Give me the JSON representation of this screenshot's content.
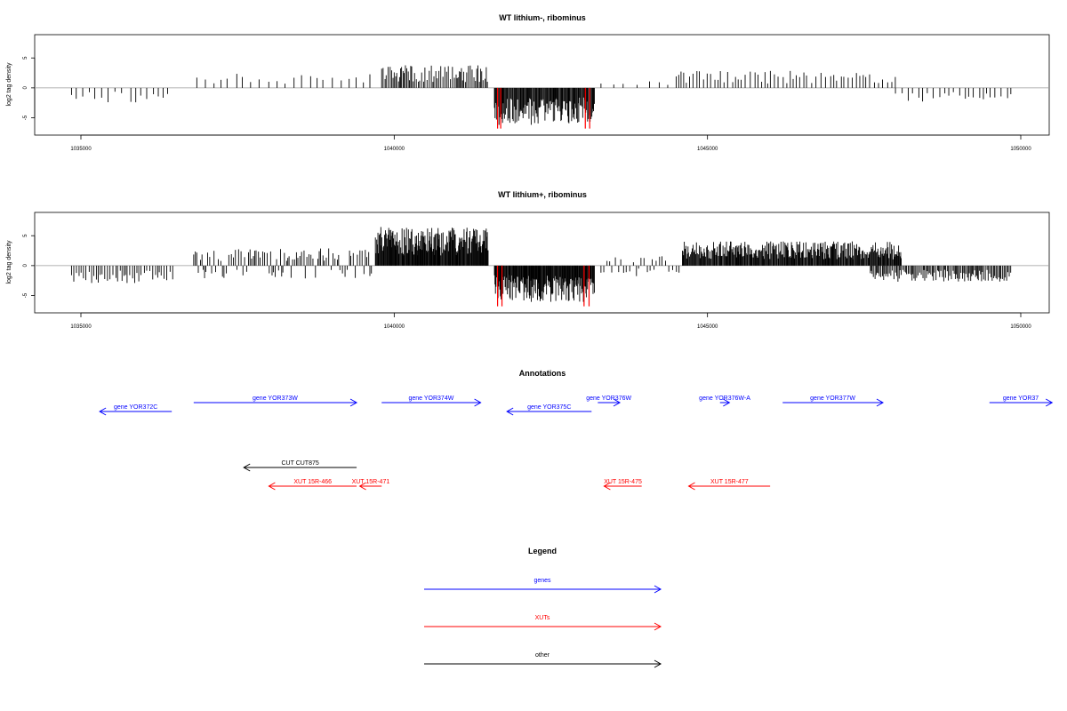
{
  "chart_data": [
    {
      "type": "bar",
      "title": "WT lithium-, ribominus",
      "ylabel": "log2 tag density",
      "xlim": [
        1035000,
        1050000
      ],
      "ylim": [
        -7,
        8
      ],
      "x_ticks": [
        1035000,
        1040000,
        1045000,
        1050000
      ],
      "y_ticks": [
        -5,
        0,
        5
      ],
      "baseline": 0,
      "segments": [
        {
          "x0": 1034850,
          "x1": 1036400,
          "y": -1.8,
          "step": 110
        },
        {
          "x0": 1036850,
          "x1": 1039750,
          "y": 1.9,
          "step": 130
        },
        {
          "x0": 1039800,
          "x1": 1041500,
          "y": 2.8,
          "step": 25
        },
        {
          "x0": 1041600,
          "x1": 1043200,
          "y": -4.6,
          "step": 12
        },
        {
          "x0": 1043300,
          "x1": 1044450,
          "y": 0.8,
          "step": 160
        },
        {
          "x0": 1044500,
          "x1": 1048000,
          "y": 2.1,
          "step": 60
        },
        {
          "x0": 1048000,
          "x1": 1049850,
          "y": -1.7,
          "step": 80
        }
      ],
      "highlight_x": [
        1041650,
        1041700,
        1043050,
        1043120
      ],
      "highlight_color": "#ff0000"
    },
    {
      "type": "bar",
      "title": "WT lithium+, ribominus",
      "ylabel": "log2 tag density",
      "xlim": [
        1035000,
        1050000
      ],
      "ylim": [
        -7,
        8
      ],
      "x_ticks": [
        1035000,
        1040000,
        1045000,
        1050000
      ],
      "y_ticks": [
        -5,
        0,
        5
      ],
      "baseline": 0,
      "segments": [
        {
          "x0": 1034850,
          "x1": 1036500,
          "y": -2.2,
          "step": 40
        },
        {
          "x0": 1036800,
          "x1": 1039650,
          "y": 2.2,
          "step": 30,
          "alt": -1.6
        },
        {
          "x0": 1039700,
          "x1": 1041500,
          "y": 4.8,
          "step": 10
        },
        {
          "x0": 1041600,
          "x1": 1043200,
          "y": -4.5,
          "step": 10
        },
        {
          "x0": 1043300,
          "x1": 1044550,
          "y": -1.4,
          "step": 45,
          "alt": 1.2
        },
        {
          "x0": 1044600,
          "x1": 1048100,
          "y": 3.0,
          "step": 12
        },
        {
          "x0": 1047600,
          "x1": 1049850,
          "y": -2.0,
          "step": 20
        }
      ],
      "highlight_x": [
        1041650,
        1041720,
        1043030,
        1043110
      ],
      "highlight_color": "#ff0000"
    }
  ],
  "annotations": {
    "title": "Annotations",
    "genes": [
      {
        "label": "gene YOR372C",
        "x0": 1035300,
        "x1": 1036450,
        "dir": "left",
        "row": 2
      },
      {
        "label": "gene YOR373W",
        "x0": 1036800,
        "x1": 1039400,
        "dir": "right",
        "row": 1
      },
      {
        "label": "gene YOR374W",
        "x0": 1039800,
        "x1": 1041380,
        "dir": "right",
        "row": 1
      },
      {
        "label": "gene YOR375C",
        "x0": 1041800,
        "x1": 1043150,
        "dir": "left",
        "row": 2
      },
      {
        "label": "gene YOR376W",
        "x0": 1043250,
        "x1": 1043600,
        "dir": "right",
        "row": 1
      },
      {
        "label": "gene YOR376W-A",
        "x0": 1045200,
        "x1": 1045350,
        "dir": "right",
        "row": 1
      },
      {
        "label": "gene YOR377W",
        "x0": 1046200,
        "x1": 1047800,
        "dir": "right",
        "row": 1
      },
      {
        "label": "gene YOR37",
        "x0": 1049500,
        "x1": 1050500,
        "dir": "right",
        "row": 1
      }
    ],
    "cuts": [
      {
        "label": "CUT CUT875",
        "x0": 1037600,
        "x1": 1039400,
        "dir": "left",
        "row": 0
      }
    ],
    "xuts": [
      {
        "label": "XUT 15R-466",
        "x0": 1038000,
        "x1": 1039400,
        "dir": "left",
        "row": 1
      },
      {
        "label": "XUT 15R-471",
        "x0": 1039450,
        "x1": 1039800,
        "dir": "left",
        "row": 1
      },
      {
        "label": "XUT 15R-475",
        "x0": 1043350,
        "x1": 1043950,
        "dir": "left",
        "row": 1
      },
      {
        "label": "XUT 15R-477",
        "x0": 1044700,
        "x1": 1046000,
        "dir": "left",
        "row": 1
      }
    ]
  },
  "legend": {
    "title": "Legend",
    "items": [
      {
        "label": "genes",
        "color": "#0000ff"
      },
      {
        "label": "XUTs",
        "color": "#ff0000"
      },
      {
        "label": "other",
        "color": "#000000"
      }
    ]
  },
  "colors": {
    "gene": "#0000ff",
    "xut": "#ff0000",
    "other": "#000000",
    "baseline": "#999999"
  }
}
